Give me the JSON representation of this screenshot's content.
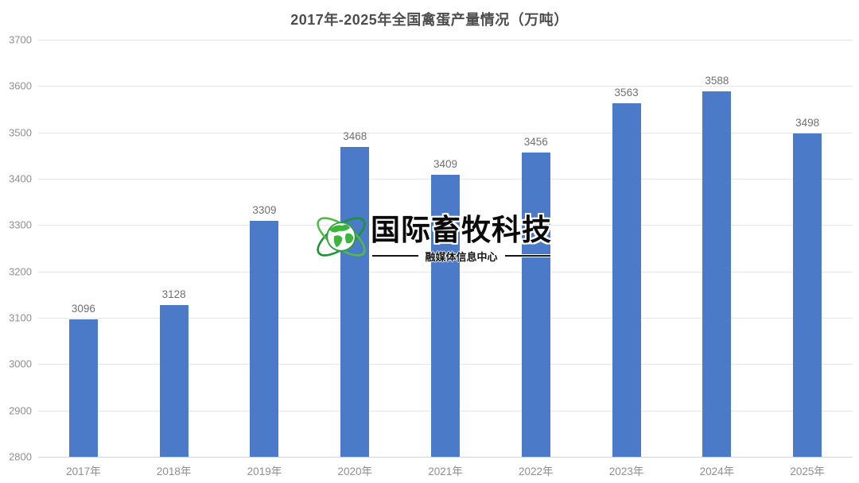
{
  "chart_data": {
    "type": "bar",
    "title": "2017年-2025年全国禽蛋产量情况（万吨）",
    "categories": [
      "2017年",
      "2018年",
      "2019年",
      "2020年",
      "2021年",
      "2022年",
      "2023年",
      "2024年",
      "2025年"
    ],
    "values": [
      3096,
      3128,
      3309,
      3468,
      3409,
      3456,
      3563,
      3588,
      3498
    ],
    "xlabel": "",
    "ylabel": "",
    "ylim": [
      2800,
      3700
    ],
    "ytick_step": 100,
    "grid": true,
    "legend": "none",
    "bar_color": "#4a7ac8",
    "value_labels_shown": true
  },
  "watermark": {
    "brand": "国际畜牧科技",
    "subtitle": "融媒体信息中心",
    "icon": "globe-orbit-icon",
    "icon_color": "#2f9e3f"
  },
  "colors": {
    "background": "#ffffff",
    "title_text": "#4d4d4d",
    "axis_text": "#8f8f8f",
    "value_text": "#707070",
    "gridline": "#e5e5e5",
    "axis_line": "#d2d2d2"
  }
}
